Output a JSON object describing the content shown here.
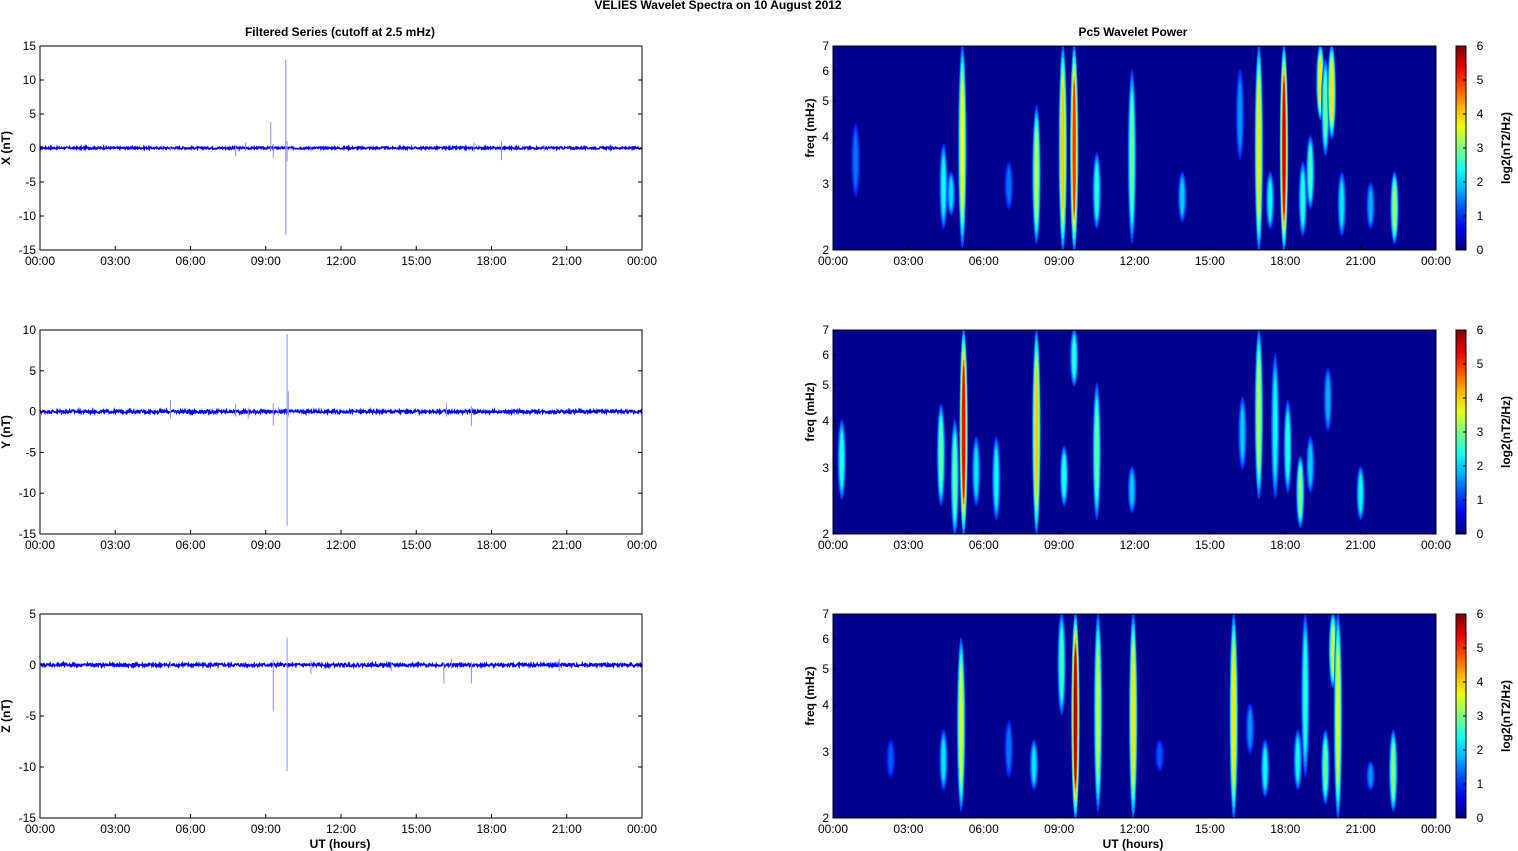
{
  "figure": {
    "title": "VELIES Wavelet Spectra on 10 August    2012",
    "left_column_title": "Filtered Series (cutoff at 2.5 mHz)",
    "right_column_title": "Pc5 Wavelet Power",
    "xlabel": "UT (hours)"
  },
  "colors": {
    "series_line": "#0000ff",
    "spike_line": "#8c8cff",
    "background": "#ffffff",
    "colormap": "jet"
  },
  "chart_data": [
    {
      "type": "line",
      "name": "time-series-x",
      "ylabel": "X (nT)",
      "x_ticks": [
        "00:00",
        "03:00",
        "06:00",
        "09:00",
        "12:00",
        "15:00",
        "18:00",
        "21:00",
        "00:00"
      ],
      "xlim_hours": [
        0,
        24
      ],
      "ylim": [
        -15,
        15
      ],
      "y_ticks": [
        -15,
        -10,
        -5,
        0,
        5,
        10,
        15
      ],
      "noise_amplitude": 0.15,
      "events": [
        {
          "t": 5.2,
          "min": -0.4,
          "max": 0.3
        },
        {
          "t": 7.8,
          "min": -1.2,
          "max": 0.4
        },
        {
          "t": 8.2,
          "min": -0.3,
          "max": 0.8
        },
        {
          "t": 9.2,
          "min": -0.5,
          "max": 3.8
        },
        {
          "t": 9.3,
          "min": -1.5,
          "max": 0.6
        },
        {
          "t": 9.8,
          "min": -12.8,
          "max": 13.0
        },
        {
          "t": 9.85,
          "min": -2.0,
          "max": 1.0
        },
        {
          "t": 10.8,
          "min": -0.5,
          "max": 0.3
        },
        {
          "t": 17.3,
          "min": -0.6,
          "max": 0.8
        },
        {
          "t": 18.4,
          "min": -1.8,
          "max": 1.0
        },
        {
          "t": 20.1,
          "min": -0.5,
          "max": 0.4
        }
      ]
    },
    {
      "type": "line",
      "name": "time-series-y",
      "ylabel": "Y (nT)",
      "x_ticks": [
        "00:00",
        "03:00",
        "06:00",
        "09:00",
        "12:00",
        "15:00",
        "18:00",
        "21:00",
        "00:00"
      ],
      "xlim_hours": [
        0,
        24
      ],
      "ylim": [
        -15,
        10
      ],
      "y_ticks": [
        -15,
        -10,
        -5,
        0,
        5,
        10
      ],
      "noise_amplitude": 0.2,
      "events": [
        {
          "t": 5.2,
          "min": -0.8,
          "max": 1.4
        },
        {
          "t": 7.8,
          "min": -0.6,
          "max": 0.9
        },
        {
          "t": 8.3,
          "min": -0.9,
          "max": 0.5
        },
        {
          "t": 9.3,
          "min": -1.7,
          "max": 1.0
        },
        {
          "t": 9.5,
          "min": -0.5,
          "max": 0.6
        },
        {
          "t": 9.85,
          "min": -14.0,
          "max": 9.5
        },
        {
          "t": 9.9,
          "min": -0.6,
          "max": 2.5
        },
        {
          "t": 16.2,
          "min": -0.6,
          "max": 1.1
        },
        {
          "t": 17.2,
          "min": -1.8,
          "max": 0.7
        }
      ]
    },
    {
      "type": "line",
      "name": "time-series-z",
      "ylabel": "Z (nT)",
      "x_ticks": [
        "00:00",
        "03:00",
        "06:00",
        "09:00",
        "12:00",
        "15:00",
        "18:00",
        "21:00",
        "00:00"
      ],
      "xlim_hours": [
        0,
        24
      ],
      "ylim": [
        -15,
        5
      ],
      "y_ticks": [
        -15,
        -10,
        -5,
        0,
        5
      ],
      "noise_amplitude": 0.15,
      "events": [
        {
          "t": 5.2,
          "min": -0.3,
          "max": 0.4
        },
        {
          "t": 9.3,
          "min": -4.5,
          "max": 0.5
        },
        {
          "t": 9.85,
          "min": -10.4,
          "max": 2.7
        },
        {
          "t": 10.8,
          "min": -0.9,
          "max": 0.4
        },
        {
          "t": 14.0,
          "min": -0.6,
          "max": 0.2
        },
        {
          "t": 16.1,
          "min": -1.8,
          "max": 0.3
        },
        {
          "t": 16.4,
          "min": -0.4,
          "max": 0.6
        },
        {
          "t": 17.2,
          "min": -1.8,
          "max": 0.3
        },
        {
          "t": 20.7,
          "min": -0.6,
          "max": 0.6
        }
      ]
    },
    {
      "type": "heatmap",
      "name": "wavelet-power-x",
      "ylabel": "freq (mHz)",
      "colorbar_label": "log2(nT2/Hz)",
      "x_ticks": [
        "00:00",
        "03:00",
        "06:00",
        "09:00",
        "12:00",
        "15:00",
        "18:00",
        "21:00",
        "00:00"
      ],
      "xlim_hours": [
        0,
        24
      ],
      "freq_range_mHz": [
        2,
        7
      ],
      "y_ticks": [
        2,
        3,
        4,
        5,
        6,
        7
      ],
      "clim": [
        0,
        6
      ],
      "colorbar_ticks": [
        0,
        1,
        2,
        3,
        4,
        5,
        6
      ],
      "blobs": [
        {
          "t": 0.9,
          "f0": 2.8,
          "f1": 4.3,
          "peak": 0.8
        },
        {
          "t": 4.4,
          "f0": 2.3,
          "f1": 3.8,
          "peak": 1.8
        },
        {
          "t": 4.7,
          "f0": 2.5,
          "f1": 3.2,
          "peak": 1.5
        },
        {
          "t": 5.15,
          "f0": 2.05,
          "f1": 7.0,
          "peak": 3.4
        },
        {
          "t": 7.0,
          "f0": 2.6,
          "f1": 3.4,
          "peak": 0.8
        },
        {
          "t": 8.1,
          "f0": 2.1,
          "f1": 4.8,
          "peak": 3.0
        },
        {
          "t": 9.15,
          "f0": 2.0,
          "f1": 7.0,
          "peak": 3.8
        },
        {
          "t": 9.6,
          "f0": 2.0,
          "f1": 7.0,
          "peak": 4.8
        },
        {
          "t": 10.5,
          "f0": 2.3,
          "f1": 3.6,
          "peak": 2.0
        },
        {
          "t": 11.9,
          "f0": 2.1,
          "f1": 6.0,
          "peak": 2.4
        },
        {
          "t": 13.9,
          "f0": 2.4,
          "f1": 3.2,
          "peak": 1.4
        },
        {
          "t": 16.2,
          "f0": 3.5,
          "f1": 6.0,
          "peak": 1.0
        },
        {
          "t": 16.95,
          "f0": 2.0,
          "f1": 7.0,
          "peak": 3.6
        },
        {
          "t": 17.4,
          "f0": 2.3,
          "f1": 3.2,
          "peak": 1.8
        },
        {
          "t": 17.95,
          "f0": 2.0,
          "f1": 7.0,
          "peak": 5.4
        },
        {
          "t": 18.7,
          "f0": 2.2,
          "f1": 3.4,
          "peak": 2.0
        },
        {
          "t": 19.0,
          "f0": 2.6,
          "f1": 4.0,
          "peak": 2.2
        },
        {
          "t": 19.4,
          "f0": 4.5,
          "f1": 7.0,
          "peak": 3.6
        },
        {
          "t": 19.6,
          "f0": 3.6,
          "f1": 6.4,
          "peak": 2.4
        },
        {
          "t": 19.85,
          "f0": 4.0,
          "f1": 7.0,
          "peak": 3.6
        },
        {
          "t": 20.25,
          "f0": 2.2,
          "f1": 3.2,
          "peak": 1.6
        },
        {
          "t": 21.4,
          "f0": 2.3,
          "f1": 3.0,
          "peak": 1.2
        },
        {
          "t": 22.35,
          "f0": 2.1,
          "f1": 3.2,
          "peak": 2.8
        }
      ]
    },
    {
      "type": "heatmap",
      "name": "wavelet-power-y",
      "ylabel": "freq (mHz)",
      "colorbar_label": "log2(nT2/Hz)",
      "x_ticks": [
        "00:00",
        "03:00",
        "06:00",
        "09:00",
        "12:00",
        "15:00",
        "18:00",
        "21:00",
        "00:00"
      ],
      "xlim_hours": [
        0,
        24
      ],
      "freq_range_mHz": [
        2,
        7
      ],
      "y_ticks": [
        2,
        3,
        4,
        5,
        6,
        7
      ],
      "clim": [
        0,
        6
      ],
      "colorbar_ticks": [
        0,
        1,
        2,
        3,
        4,
        5,
        6
      ],
      "blobs": [
        {
          "t": 0.35,
          "f0": 2.5,
          "f1": 4.0,
          "peak": 2.0
        },
        {
          "t": 4.3,
          "f0": 2.4,
          "f1": 4.4,
          "peak": 2.4
        },
        {
          "t": 4.85,
          "f0": 2.0,
          "f1": 4.0,
          "peak": 2.4
        },
        {
          "t": 5.2,
          "f0": 2.0,
          "f1": 7.0,
          "peak": 5.2
        },
        {
          "t": 5.7,
          "f0": 2.4,
          "f1": 3.6,
          "peak": 1.6
        },
        {
          "t": 6.5,
          "f0": 2.2,
          "f1": 3.6,
          "peak": 1.8
        },
        {
          "t": 8.1,
          "f0": 2.0,
          "f1": 7.0,
          "peak": 3.8
        },
        {
          "t": 9.2,
          "f0": 2.4,
          "f1": 3.4,
          "peak": 2.0
        },
        {
          "t": 9.6,
          "f0": 5.0,
          "f1": 7.0,
          "peak": 2.0
        },
        {
          "t": 10.5,
          "f0": 2.2,
          "f1": 5.0,
          "peak": 2.4
        },
        {
          "t": 11.9,
          "f0": 2.3,
          "f1": 3.0,
          "peak": 1.4
        },
        {
          "t": 16.3,
          "f0": 3.0,
          "f1": 4.6,
          "peak": 1.4
        },
        {
          "t": 16.95,
          "f0": 2.5,
          "f1": 7.0,
          "peak": 3.0
        },
        {
          "t": 17.6,
          "f0": 2.5,
          "f1": 6.0,
          "peak": 1.8
        },
        {
          "t": 18.1,
          "f0": 2.6,
          "f1": 4.5,
          "peak": 2.0
        },
        {
          "t": 18.6,
          "f0": 2.1,
          "f1": 3.2,
          "peak": 2.6
        },
        {
          "t": 19.0,
          "f0": 2.6,
          "f1": 3.6,
          "peak": 1.4
        },
        {
          "t": 19.7,
          "f0": 3.8,
          "f1": 5.5,
          "peak": 1.2
        },
        {
          "t": 21.0,
          "f0": 2.2,
          "f1": 3.0,
          "peak": 1.8
        }
      ]
    },
    {
      "type": "heatmap",
      "name": "wavelet-power-z",
      "ylabel": "freq (mHz)",
      "colorbar_label": "log2(nT2/Hz)",
      "x_ticks": [
        "00:00",
        "03:00",
        "06:00",
        "09:00",
        "12:00",
        "15:00",
        "18:00",
        "21:00",
        "00:00"
      ],
      "xlim_hours": [
        0,
        24
      ],
      "freq_range_mHz": [
        2,
        7
      ],
      "y_ticks": [
        2,
        3,
        4,
        5,
        6,
        7
      ],
      "clim": [
        0,
        6
      ],
      "colorbar_ticks": [
        0,
        1,
        2,
        3,
        4,
        5,
        6
      ],
      "blobs": [
        {
          "t": 2.3,
          "f0": 2.6,
          "f1": 3.2,
          "peak": 0.6
        },
        {
          "t": 4.4,
          "f0": 2.4,
          "f1": 3.4,
          "peak": 1.6
        },
        {
          "t": 5.1,
          "f0": 2.1,
          "f1": 6.0,
          "peak": 3.2
        },
        {
          "t": 7.0,
          "f0": 2.6,
          "f1": 3.6,
          "peak": 0.8
        },
        {
          "t": 8.0,
          "f0": 2.4,
          "f1": 3.2,
          "peak": 1.6
        },
        {
          "t": 9.1,
          "f0": 3.8,
          "f1": 7.0,
          "peak": 2.2
        },
        {
          "t": 9.65,
          "f0": 2.0,
          "f1": 7.0,
          "peak": 5.6
        },
        {
          "t": 10.55,
          "f0": 2.1,
          "f1": 7.0,
          "peak": 3.0
        },
        {
          "t": 11.95,
          "f0": 2.0,
          "f1": 7.0,
          "peak": 3.6
        },
        {
          "t": 13.0,
          "f0": 2.7,
          "f1": 3.2,
          "peak": 0.6
        },
        {
          "t": 15.95,
          "f0": 2.0,
          "f1": 7.0,
          "peak": 3.6
        },
        {
          "t": 16.6,
          "f0": 3.0,
          "f1": 4.0,
          "peak": 1.0
        },
        {
          "t": 17.2,
          "f0": 2.3,
          "f1": 3.2,
          "peak": 1.8
        },
        {
          "t": 18.5,
          "f0": 2.4,
          "f1": 3.4,
          "peak": 1.8
        },
        {
          "t": 18.8,
          "f0": 2.6,
          "f1": 7.0,
          "peak": 2.0
        },
        {
          "t": 19.6,
          "f0": 2.2,
          "f1": 3.4,
          "peak": 2.4
        },
        {
          "t": 19.9,
          "f0": 4.5,
          "f1": 7.0,
          "peak": 3.0
        },
        {
          "t": 20.1,
          "f0": 2.0,
          "f1": 7.0,
          "peak": 3.2
        },
        {
          "t": 21.4,
          "f0": 2.4,
          "f1": 2.8,
          "peak": 1.0
        },
        {
          "t": 22.3,
          "f0": 2.1,
          "f1": 3.4,
          "peak": 2.6
        }
      ]
    }
  ]
}
